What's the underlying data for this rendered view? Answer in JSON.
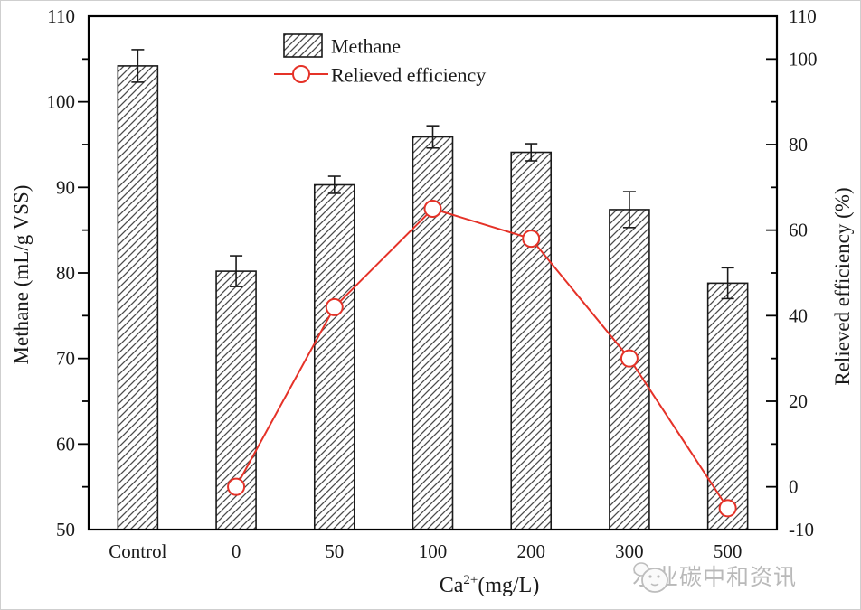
{
  "figure": {
    "background": "#ffffff",
    "frame_color": "#cfcfcf"
  },
  "legend": {
    "methane_label": "Methane",
    "efficiency_label": "Relieved efficiency"
  },
  "axes": {
    "left_title": "Methane (mL/g VSS)",
    "right_title": "Relieved efficiency (%)",
    "x_title_base": "Ca",
    "x_title_sup": "2+",
    "x_title_unit": "(mg/L)"
  },
  "watermark": {
    "text": "水业碳中和资讯"
  },
  "chart_data": {
    "type": "bar",
    "combo": "bar+line dual axis",
    "title": "",
    "xlabel": "Ca2+(mg/L)",
    "categories": [
      "Control",
      "0",
      "50",
      "100",
      "200",
      "300",
      "500"
    ],
    "series": [
      {
        "name": "Methane",
        "type": "bar",
        "axis": "left",
        "values": [
          104.2,
          80.2,
          90.3,
          95.9,
          94.1,
          87.4,
          78.8
        ],
        "errors": [
          1.9,
          1.8,
          1.0,
          1.3,
          1.0,
          2.1,
          1.8
        ]
      },
      {
        "name": "Relieved efficiency",
        "type": "line",
        "axis": "right",
        "x": [
          "0",
          "50",
          "100",
          "200",
          "300",
          "500"
        ],
        "values": [
          0,
          42,
          65,
          58,
          30,
          -5
        ]
      }
    ],
    "left_axis": {
      "label": "Methane (mL/g VSS)",
      "min": 50,
      "max": 110,
      "major_ticks": [
        50,
        60,
        70,
        80,
        90,
        100,
        110
      ],
      "minor_step": 5
    },
    "right_axis": {
      "label": "Relieved efficiency (%)",
      "min": -10,
      "max": 110,
      "tick_labels": [
        -10,
        0,
        20,
        40,
        60,
        80,
        100,
        110
      ],
      "major_ticks": [
        0,
        20,
        40,
        60,
        80,
        100
      ],
      "minor_ticks": [
        10,
        30,
        50,
        70,
        90
      ]
    },
    "grid": false,
    "legend_position": "top-center-left",
    "colors": {
      "bar_fill": "#ffffff",
      "bar_edge": "#1a1a1a",
      "hatch_line": "#4a4a4a",
      "line": "#e53228",
      "marker_fill": "#ffffff",
      "text": "#1a1a1a"
    }
  }
}
